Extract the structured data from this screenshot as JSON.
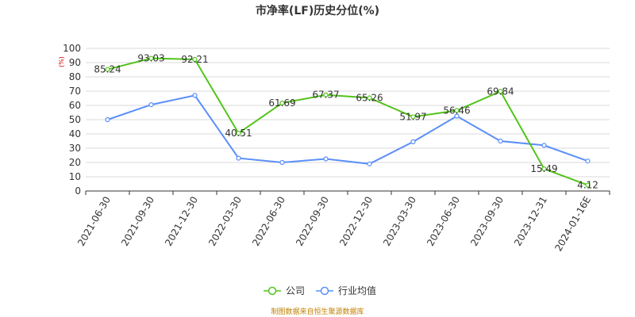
{
  "chart_data": {
    "type": "line",
    "title": "市净率(LF)历史分位(%)",
    "unit_label": "(%)",
    "categories": [
      "2021-06-30",
      "2021-09-30",
      "2021-12-30",
      "2022-03-30",
      "2022-06-30",
      "2022-09-30",
      "2022-12-30",
      "2023-03-30",
      "2023-06-30",
      "2023-09-30",
      "2023-12-31",
      "2024-01-16E"
    ],
    "ylim": [
      0,
      100
    ],
    "yticks": [
      0,
      10,
      20,
      30,
      40,
      50,
      60,
      70,
      80,
      90,
      100
    ],
    "grid": true,
    "legend_position": "bottom",
    "series": [
      {
        "name": "公司",
        "color": "#52c41a",
        "values": [
          85.24,
          93.03,
          92.21,
          40.51,
          61.69,
          67.37,
          65.26,
          51.97,
          56.46,
          69.84,
          15.49,
          4.12
        ],
        "labels": [
          "85.24",
          "93.03",
          "92.21",
          "40.51",
          "61.69",
          "67.37",
          "65.26",
          "51.97",
          "56.46",
          "69.84",
          "15.49",
          "4.12"
        ]
      },
      {
        "name": "行业均值",
        "color": "#5b8ff9",
        "values": [
          50,
          60.5,
          67,
          23,
          20,
          22.5,
          19,
          34.5,
          52.5,
          35,
          32,
          21
        ]
      }
    ],
    "source": "制图数据来自恒生聚源数据库"
  }
}
